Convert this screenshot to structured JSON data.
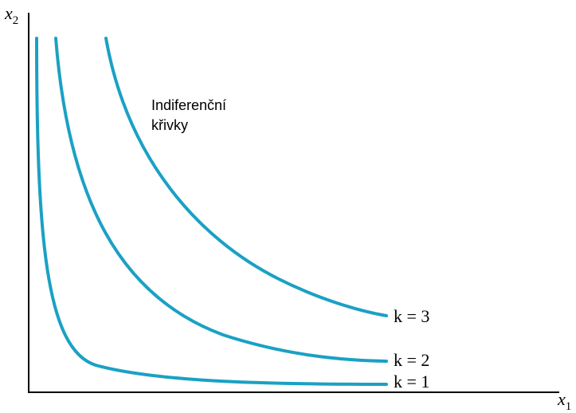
{
  "y_axis_label": {
    "var": "x",
    "sub": "2"
  },
  "x_axis_label": {
    "var": "x",
    "sub": "1"
  },
  "annotation": [
    "Indiferenční",
    "křivky"
  ],
  "curves": [
    {
      "label": "k = 1"
    },
    {
      "label": "k = 2"
    },
    {
      "label": "k = 3"
    }
  ]
}
